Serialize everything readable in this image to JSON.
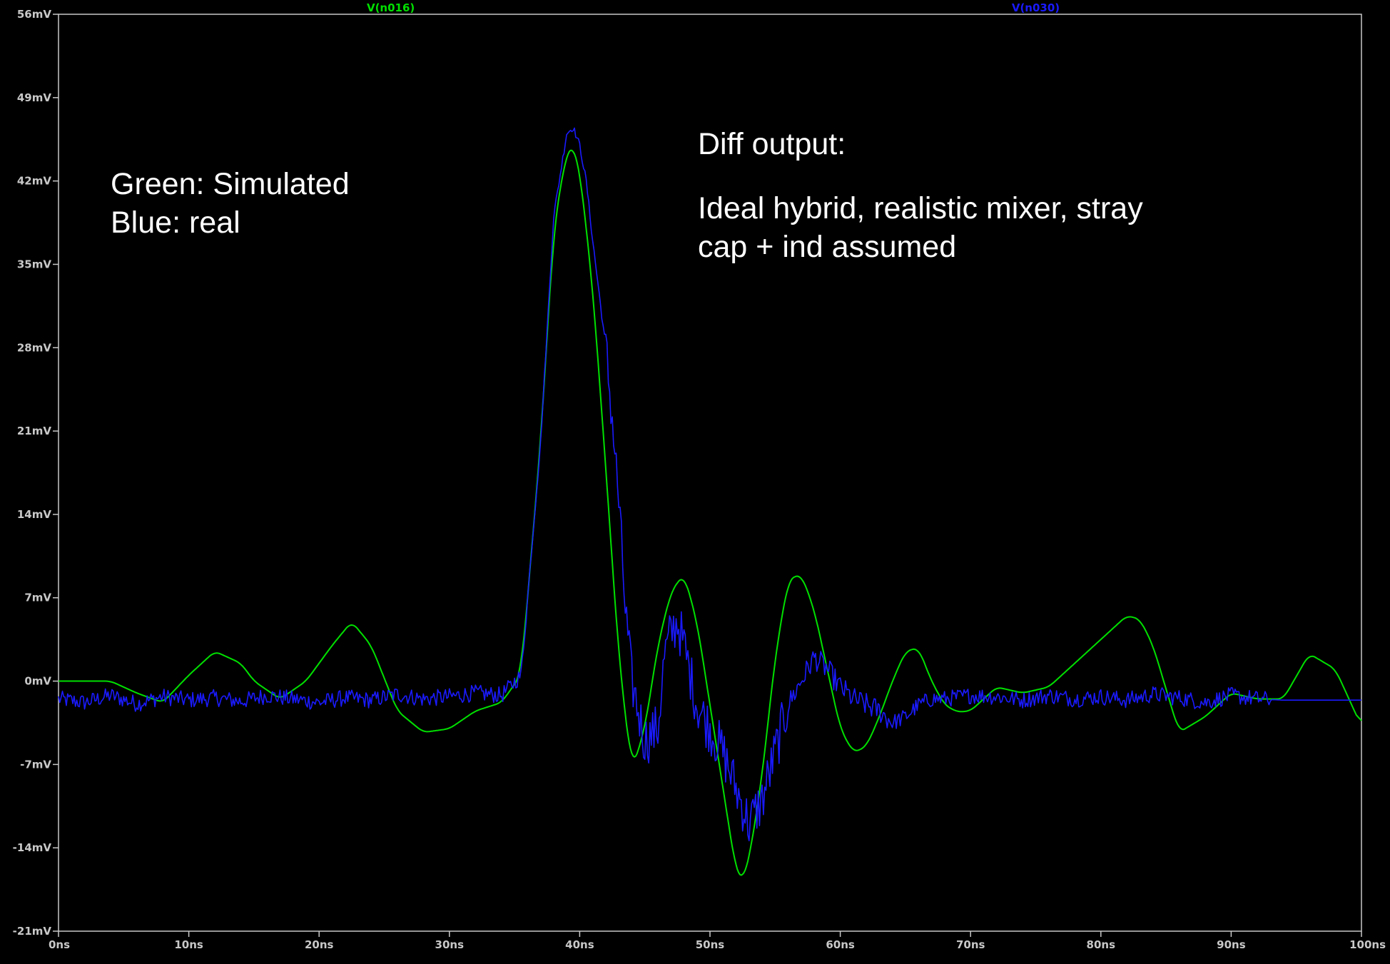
{
  "chart_data": {
    "type": "line",
    "xlim": [
      0,
      100
    ],
    "ylim": [
      -21,
      56
    ],
    "x_ticks": [
      "0ns",
      "10ns",
      "20ns",
      "30ns",
      "40ns",
      "50ns",
      "60ns",
      "70ns",
      "80ns",
      "90ns",
      "100ns"
    ],
    "y_ticks": [
      "56mV",
      "49mV",
      "42mV",
      "35mV",
      "28mV",
      "21mV",
      "14mV",
      "7mV",
      "0mV",
      "-7mV",
      "-14mV",
      "-21mV"
    ],
    "grid": false,
    "legend_position": "top",
    "colors": {
      "background": "#000000",
      "axis": "#c8c8c8",
      "simulated": "#00e000",
      "real": "#1a1aff"
    },
    "series": [
      {
        "name": "V(n016)",
        "color": "#00e000",
        "x": [
          0,
          4,
          6,
          8,
          10,
          12,
          14,
          15,
          17,
          19,
          21,
          22.5,
          24,
          26,
          28,
          30,
          32,
          34,
          35.5,
          37,
          38,
          39,
          39.5,
          40,
          41,
          42,
          43,
          44,
          45,
          46,
          47,
          48,
          49,
          50,
          51,
          52,
          52.5,
          53,
          54,
          55,
          56,
          57,
          58,
          59,
          60,
          61,
          62,
          63,
          64,
          65,
          66,
          67,
          68,
          69,
          70,
          72,
          74,
          76,
          78,
          80,
          82,
          83,
          84,
          86,
          88,
          90,
          92,
          94,
          96,
          98,
          100
        ],
        "y": [
          0,
          0,
          -1,
          -1.8,
          0.5,
          2.5,
          1.5,
          0,
          -1.5,
          0,
          3,
          5,
          3,
          -2.5,
          -4.3,
          -4,
          -2.5,
          -1.8,
          0.5,
          20,
          38,
          44.5,
          45,
          43,
          33,
          18,
          2,
          -7.5,
          -4,
          3,
          7.5,
          9,
          5,
          -2,
          -9,
          -16,
          -16.8,
          -15,
          -8,
          2,
          8.5,
          9,
          6,
          1,
          -4,
          -6,
          -5.5,
          -3,
          0,
          2.5,
          2.8,
          0,
          -2,
          -2.6,
          -2.5,
          -0.5,
          -1,
          -0.5,
          1.5,
          3.5,
          5.5,
          5.2,
          3,
          -4.3,
          -3,
          -1,
          -1.5,
          -1.5,
          2.3,
          1,
          -3.8
        ]
      },
      {
        "name": "V(n030)",
        "color": "#1a1aff",
        "x": [
          0,
          2,
          4,
          6,
          8,
          10,
          12,
          14,
          16,
          18,
          20,
          22,
          24,
          26,
          28,
          30,
          32,
          34,
          35.5,
          37,
          38,
          39,
          39.5,
          40,
          40.5,
          41,
          42,
          42.5,
          43,
          43.5,
          44,
          45,
          46,
          46.5,
          47,
          47.5,
          48,
          49,
          50,
          51,
          52,
          53,
          54,
          55,
          56,
          57,
          58,
          59,
          60,
          61,
          62,
          63,
          64,
          65,
          66,
          67,
          68,
          70,
          72,
          74,
          76,
          78,
          80,
          82,
          84,
          86,
          88,
          90,
          92,
          94,
          96,
          98,
          100
        ],
        "y": [
          -1.5,
          -1.8,
          -1.2,
          -1.9,
          -1.3,
          -1.6,
          -1.4,
          -1.7,
          -1.2,
          -1.5,
          -1.8,
          -1.4,
          -1.6,
          -1.1,
          -1.5,
          -1.3,
          -1.0,
          -1.2,
          0.5,
          20,
          39,
          46,
          46.5,
          45,
          42,
          37,
          28,
          22,
          15,
          6,
          0,
          -5,
          -4,
          2,
          4,
          5,
          3,
          -2,
          -4,
          -6,
          -9,
          -12,
          -10,
          -6,
          -2,
          0,
          2,
          1,
          -0.5,
          -1.5,
          -2,
          -2.5,
          -3.5,
          -3,
          -2,
          -1.5,
          -1.5,
          -1.2,
          -1.3,
          -1.6,
          -1.2,
          -1.5,
          -1.3,
          -1.6,
          -1.1,
          -1.4,
          -1.8,
          -1.2,
          -1.5,
          -1.6,
          -1.6,
          -1.6,
          -1.6
        ]
      }
    ]
  },
  "annotations": {
    "left_lines": "Green: Simulated\nBlue: real",
    "right_title": "Diff output:",
    "right_body": "Ideal hybrid, realistic mixer, stray\ncap + ind assumed"
  }
}
